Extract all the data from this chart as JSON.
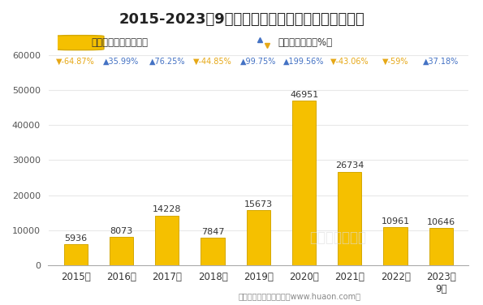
{
  "title": "2015-2023年9月大连商品交易所鸡蛋期货成交金额",
  "years": [
    "2015年",
    "2016年",
    "2017年",
    "2018年",
    "2019年",
    "2020年",
    "2021年",
    "2022年",
    "2023年\n9月"
  ],
  "values": [
    5936,
    8073,
    14228,
    7847,
    15673,
    46951,
    26734,
    10961,
    10646
  ],
  "growth_texts": [
    "▼-64.87%",
    "▲35.99%",
    "▲76.25%",
    "▼-44.85%",
    "▲99.75%",
    "▲199.56%",
    "▼-43.06%",
    "▼-59%",
    "▲37.18%"
  ],
  "growth_signs": [
    -1,
    1,
    1,
    -1,
    1,
    1,
    -1,
    -1,
    1
  ],
  "bar_color": "#F5C000",
  "bar_edge_color": "#D4A800",
  "up_color": "#4472C4",
  "down_color": "#E6A817",
  "text_color": "#333333",
  "ylim": [
    0,
    60000
  ],
  "yticks": [
    0,
    10000,
    20000,
    30000,
    40000,
    50000,
    60000
  ],
  "legend_bar_label": "期货成交金额（亿元）",
  "legend_line_label": "累计同比增长（%）",
  "footer": "制图：华经产业研究院（www.huaon.com）",
  "background_color": "#FFFFFF",
  "grid_color": "#E8E8E8",
  "title_fontsize": 13,
  "bar_annot_fontsize": 8,
  "growth_fontsize": 7
}
